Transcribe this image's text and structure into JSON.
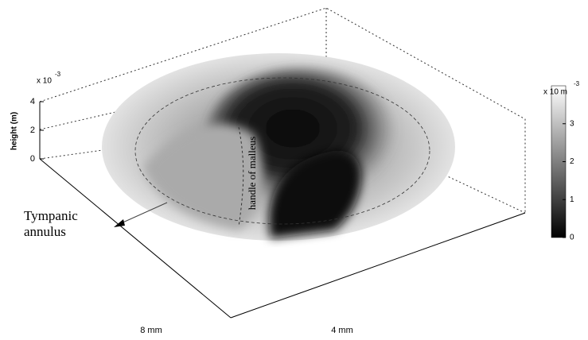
{
  "chart_data": {
    "type": "surface",
    "zlabel": "height (m)",
    "z_multiplier": "x 10",
    "z_exponent": "-3",
    "zlim": [
      0,
      4
    ],
    "zticks": [
      0,
      2,
      4
    ],
    "xlabel": "4 mm",
    "ylabel": "8 mm",
    "colorbar": {
      "label": "x 10 m",
      "exponent": "-3",
      "lim": [
        0,
        4
      ],
      "ticks": [
        0,
        1,
        2,
        3
      ]
    },
    "annotations": {
      "annulus": "Tympanic annulus",
      "malleus": "handle of malleus"
    }
  }
}
